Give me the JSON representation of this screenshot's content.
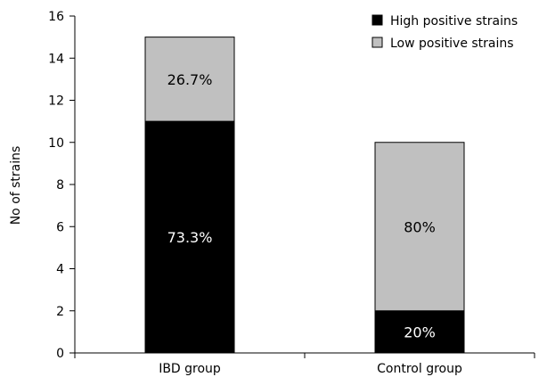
{
  "chart_data": {
    "type": "bar",
    "stacked": true,
    "categories": [
      "IBD group",
      "Control group"
    ],
    "series": [
      {
        "name": "High positive strains",
        "values": [
          11,
          2
        ],
        "labels": [
          "73.3%",
          "20%"
        ],
        "color": "#000000",
        "label_color": "#ffffff"
      },
      {
        "name": "Low positive strains",
        "values": [
          4,
          8
        ],
        "labels": [
          "26.7%",
          "80%"
        ],
        "color": "#c0c0c0",
        "label_color": "#000000"
      }
    ],
    "ylabel": "No of strains",
    "ylim": [
      0,
      16
    ],
    "yticks": [
      0,
      2,
      4,
      6,
      8,
      10,
      12,
      14,
      16
    ],
    "legend_position": "top-right",
    "grid": false
  }
}
